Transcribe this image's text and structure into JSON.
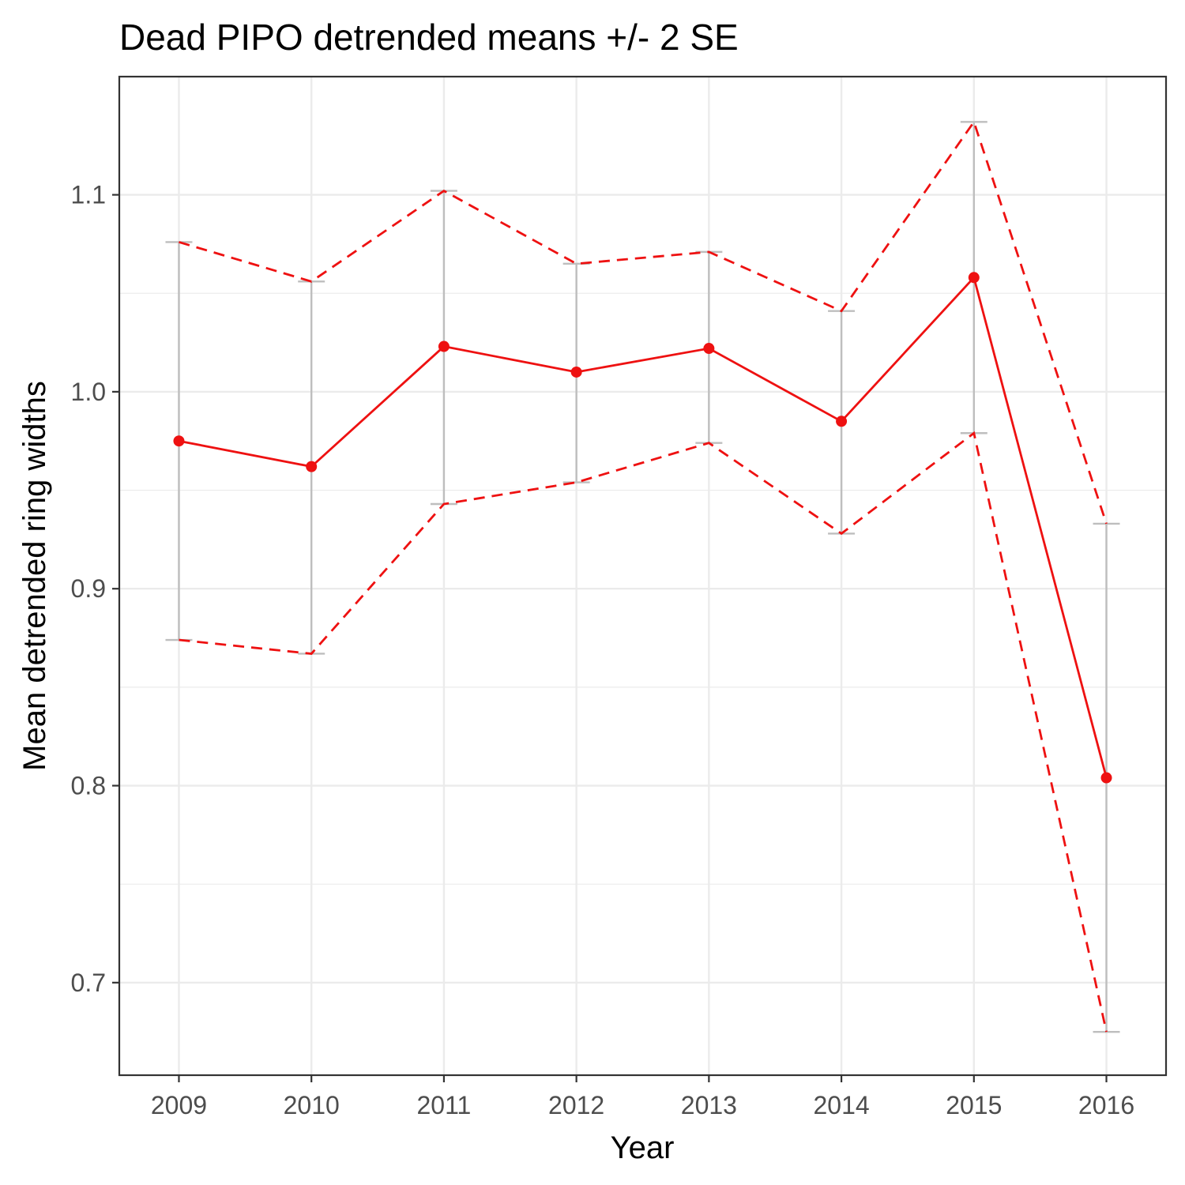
{
  "chart_data": {
    "type": "line",
    "title": "Dead PIPO detrended means +/- 2 SE",
    "xlabel": "Year",
    "ylabel": "Mean detrended ring widths",
    "x": [
      2009,
      2010,
      2011,
      2012,
      2013,
      2014,
      2015,
      2016
    ],
    "x_tick_labels": [
      "2009",
      "2010",
      "2011",
      "2012",
      "2013",
      "2014",
      "2015",
      "2016"
    ],
    "y_ticks": [
      0.7,
      0.8,
      0.9,
      1.0,
      1.1
    ],
    "y_tick_labels": [
      "0.7",
      "0.8",
      "0.9",
      "1.0",
      "1.1"
    ],
    "ylim": [
      0.653,
      1.16
    ],
    "xlim": [
      2008.55,
      2016.45
    ],
    "grid": true,
    "legend": "none",
    "series": [
      {
        "role": "mean",
        "values": [
          0.975,
          0.962,
          1.023,
          1.01,
          1.022,
          0.985,
          1.058,
          0.804
        ]
      },
      {
        "role": "upper",
        "values": [
          1.076,
          1.056,
          1.102,
          1.065,
          1.071,
          1.041,
          1.137,
          0.933
        ]
      },
      {
        "role": "lower",
        "values": [
          0.874,
          0.867,
          0.943,
          0.954,
          0.974,
          0.928,
          0.979,
          0.675
        ]
      }
    ],
    "colors": {
      "mean": "#ee1111",
      "bounds": "#ee1111",
      "errorbar": "#bebebe",
      "grid": "#ebebeb",
      "panel_border": "#333333"
    }
  }
}
